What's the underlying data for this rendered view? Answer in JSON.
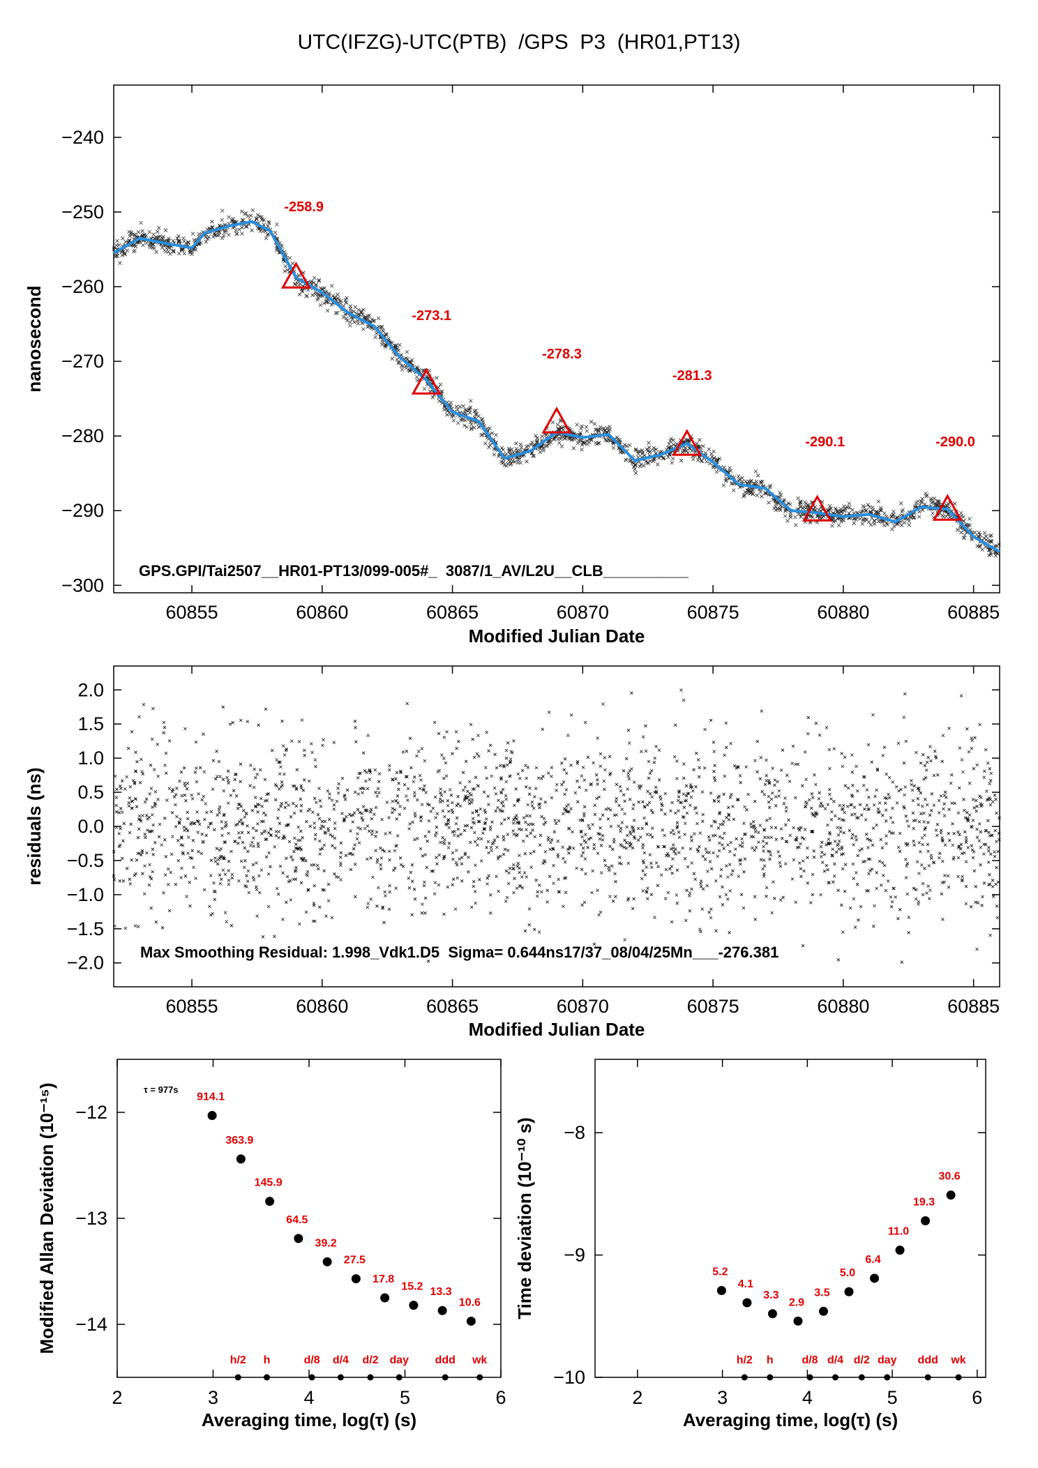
{
  "page_title": "UTC(IFZG)-UTC(PTB)  /GPS  P3  (HR01,PT13)",
  "colors": {
    "fit": "#2a8fdc",
    "marker": "#e00000",
    "data": "#000000",
    "label": "#e00000"
  },
  "chart_data": [
    {
      "type": "scatter",
      "title": "UTC(IFZG)-UTC(PTB)  /GPS  P3  (HR01,PT13)",
      "xlabel": "Modified Julian Date",
      "ylabel": "nanosecond",
      "xlim": [
        60852,
        60886
      ],
      "ylim": [
        -301,
        -233
      ],
      "xticks": [
        60855,
        60860,
        60865,
        60870,
        60875,
        60880,
        60885
      ],
      "yticks": [
        -240,
        -250,
        -260,
        -270,
        -280,
        -290,
        -300
      ],
      "annotation": "GPS.GPI/Tai2507__HR01-PT13/099-005#_  3087/1_AV/L2U__CLB__________",
      "fit_curve": [
        [
          60852,
          -255.5
        ],
        [
          60853,
          -253.5
        ],
        [
          60854,
          -254.2
        ],
        [
          60855,
          -254.8
        ],
        [
          60855.5,
          -252.8
        ],
        [
          60856.5,
          -251.8
        ],
        [
          60857.3,
          -251.3
        ],
        [
          60858,
          -252.5
        ],
        [
          60859,
          -258.8
        ],
        [
          60860,
          -260.8
        ],
        [
          60861,
          -263.5
        ],
        [
          60862,
          -265.3
        ],
        [
          60863,
          -269.5
        ],
        [
          60864,
          -272.5
        ],
        [
          60865,
          -276.8
        ],
        [
          60866,
          -278.0
        ],
        [
          60867,
          -283.0
        ],
        [
          60868,
          -282.0
        ],
        [
          60869,
          -279.5
        ],
        [
          60870,
          -280.2
        ],
        [
          60871,
          -279.8
        ],
        [
          60872,
          -283.3
        ],
        [
          60873,
          -282.5
        ],
        [
          60874,
          -281.0
        ],
        [
          60875,
          -283.5
        ],
        [
          60876,
          -286.5
        ],
        [
          60877,
          -287.0
        ],
        [
          60878,
          -290.0
        ],
        [
          60879,
          -290.3
        ],
        [
          60880,
          -290.8
        ],
        [
          60881,
          -290.5
        ],
        [
          60882,
          -291.5
        ],
        [
          60883,
          -289.5
        ],
        [
          60884,
          -289.8
        ],
        [
          60885,
          -293.5
        ],
        [
          60886,
          -295.5
        ]
      ],
      "markers": [
        {
          "x": 60859,
          "y": -258.9,
          "label": "-258.9"
        },
        {
          "x": 60864,
          "y": -273.1,
          "label": "-273.1"
        },
        {
          "x": 60869,
          "y": -278.3,
          "label": "-278.3"
        },
        {
          "x": 60874,
          "y": -281.3,
          "label": "-281.3"
        },
        {
          "x": 60879,
          "y": -290.1,
          "label": "-290.1"
        },
        {
          "x": 60884,
          "y": -290.0,
          "label": "-290.0"
        }
      ]
    },
    {
      "type": "scatter",
      "xlabel": "Modified Julian Date",
      "ylabel": "residuals (ns)",
      "xlim": [
        60852,
        60886
      ],
      "ylim": [
        -2.35,
        2.35
      ],
      "xticks": [
        60855,
        60860,
        60865,
        60870,
        60875,
        60880,
        60885
      ],
      "yticks": [
        2.0,
        1.5,
        1.0,
        0.5,
        0.0,
        -0.5,
        -1.0,
        -1.5,
        -2.0
      ],
      "ytick_labels": [
        "2.0",
        "1.5",
        "1.0",
        "0.5",
        "0.0",
        "−0.5",
        "−1.0",
        "−1.5",
        "−2.0"
      ],
      "sigma_ns": 0.644,
      "max_residual": 1.998,
      "annotation": "Max Smoothing Residual: 1.998_Vdk1.D5  Sigma= 0.644ns17/37_08/04/25Mn___-276.381"
    },
    {
      "type": "scatter",
      "xlabel": "Averaging time, log(τ) (s)",
      "ylabel": "Modified Allan Deviation (10⁻¹⁵)",
      "xlim": [
        2,
        6
      ],
      "ylim": [
        -14.5,
        -11.5
      ],
      "xticks": [
        2,
        3,
        4,
        5,
        6
      ],
      "yticks": [
        -12,
        -13,
        -14
      ],
      "tau_note": "τ = 977s",
      "points": [
        {
          "x": 2.99,
          "y": -12.03,
          "label": "914.1"
        },
        {
          "x": 3.29,
          "y": -12.44,
          "label": "363.9"
        },
        {
          "x": 3.59,
          "y": -12.84,
          "label": "145.9"
        },
        {
          "x": 3.89,
          "y": -13.19,
          "label": "64.5"
        },
        {
          "x": 4.19,
          "y": -13.41,
          "label": "39.2"
        },
        {
          "x": 4.49,
          "y": -13.57,
          "label": "27.5"
        },
        {
          "x": 4.79,
          "y": -13.75,
          "label": "17.8"
        },
        {
          "x": 5.09,
          "y": -13.82,
          "label": "15.2"
        },
        {
          "x": 5.39,
          "y": -13.87,
          "label": "13.3"
        },
        {
          "x": 5.69,
          "y": -13.97,
          "label": "10.6"
        }
      ],
      "time_markers": [
        {
          "x": 3.26,
          "label": "h/2"
        },
        {
          "x": 3.56,
          "label": "h"
        },
        {
          "x": 4.03,
          "label": "d/8"
        },
        {
          "x": 4.33,
          "label": "d/4"
        },
        {
          "x": 4.64,
          "label": "d/2"
        },
        {
          "x": 4.94,
          "label": "day"
        },
        {
          "x": 5.42,
          "label": "ddd"
        },
        {
          "x": 5.78,
          "label": "wk"
        }
      ]
    },
    {
      "type": "scatter",
      "xlabel": "Averaging time, log(τ) (s)",
      "ylabel": "Time deviation (10⁻¹⁰ s)",
      "xlim": [
        1.5,
        6.1
      ],
      "ylim": [
        -10,
        -7.4
      ],
      "xticks": [
        2,
        3,
        4,
        5,
        6
      ],
      "yticks": [
        -8,
        -9,
        -10
      ],
      "points": [
        {
          "x": 2.99,
          "y": -9.29,
          "label": "5.2"
        },
        {
          "x": 3.29,
          "y": -9.39,
          "label": "4.1"
        },
        {
          "x": 3.59,
          "y": -9.48,
          "label": "3.3"
        },
        {
          "x": 3.89,
          "y": -9.54,
          "label": "2.9"
        },
        {
          "x": 4.19,
          "y": -9.46,
          "label": "3.5"
        },
        {
          "x": 4.49,
          "y": -9.3,
          "label": "5.0"
        },
        {
          "x": 4.79,
          "y": -9.19,
          "label": "6.4"
        },
        {
          "x": 5.09,
          "y": -8.96,
          "label": "11.0"
        },
        {
          "x": 5.39,
          "y": -8.72,
          "label": "19.3"
        },
        {
          "x": 5.69,
          "y": -8.51,
          "label": "30.6"
        }
      ],
      "time_markers": [
        {
          "x": 3.26,
          "label": "h/2"
        },
        {
          "x": 3.56,
          "label": "h"
        },
        {
          "x": 4.03,
          "label": "d/8"
        },
        {
          "x": 4.33,
          "label": "d/4"
        },
        {
          "x": 4.64,
          "label": "d/2"
        },
        {
          "x": 4.94,
          "label": "day"
        },
        {
          "x": 5.42,
          "label": "ddd"
        },
        {
          "x": 5.78,
          "label": "wk"
        }
      ]
    }
  ]
}
